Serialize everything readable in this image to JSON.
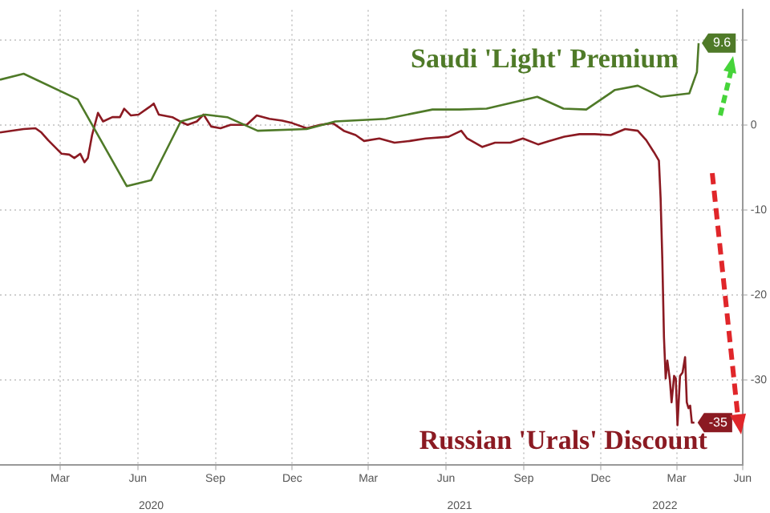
{
  "chart_data": {
    "type": "line",
    "xlim": [
      "2020-01-04",
      "2022-06-01"
    ],
    "xticks": [
      {
        "value": "2020-03-15",
        "label": "Mar"
      },
      {
        "value": "2020-06-15",
        "label": "Jun"
      },
      {
        "value": "2020-09-15",
        "label": "Sep"
      },
      {
        "value": "2020-12-15",
        "label": "Dec"
      },
      {
        "value": "2021-03-15",
        "label": "Mar"
      },
      {
        "value": "2021-06-15",
        "label": "Jun"
      },
      {
        "value": "2021-09-15",
        "label": "Sep"
      },
      {
        "value": "2021-12-15",
        "label": "Dec"
      },
      {
        "value": "2022-03-15",
        "label": "Mar"
      },
      {
        "value": "2022-06-01",
        "label": "Jun"
      }
    ],
    "x2lim": [
      "2020-01-04",
      "2022-06-01"
    ],
    "x2ticks": [
      {
        "value": "2020-07-01",
        "label": "2020"
      },
      {
        "value": "2021-07-01",
        "label": "2021"
      },
      {
        "value": "2022-03-01",
        "label": "2022"
      }
    ],
    "ylim": [
      -40,
      13.5
    ],
    "yticks": [
      {
        "value": 10,
        "label": null
      },
      0,
      -10,
      -20,
      -30
    ],
    "grid": true,
    "legend": "right",
    "series": [
      {
        "name": "Saudi 'Light' Premium",
        "color": "#4f7a28",
        "x": [
          "2020-01-04",
          "2020-02-01",
          "2020-04-05",
          "2020-06-02",
          "2020-07-01",
          "2020-08-05",
          "2020-09-03",
          "2020-09-29",
          "2020-11-04",
          "2021-01-01",
          "2021-02-04",
          "2021-04-05",
          "2021-05-30",
          "2021-07-01",
          "2021-08-02",
          "2021-10-01",
          "2021-11-01",
          "2021-11-28",
          "2022-01-01",
          "2022-01-28",
          "2022-02-24",
          "2022-03-30",
          "2022-04-08",
          "2022-04-10"
        ],
        "values": [
          5.3,
          6.0,
          3.0,
          -7.2,
          -6.5,
          0.4,
          1.2,
          0.9,
          -0.7,
          -0.5,
          0.4,
          0.7,
          1.8,
          1.8,
          1.9,
          3.3,
          1.9,
          1.8,
          4.1,
          4.6,
          3.3,
          3.7,
          6.2,
          9.6
        ],
        "value_labels": [
          null,
          null,
          null,
          null,
          null,
          null,
          null,
          null,
          null,
          null,
          null,
          null,
          null,
          null,
          null,
          null,
          null,
          null,
          null,
          null,
          null,
          null,
          null,
          "9.6"
        ]
      },
      {
        "name": "Russian 'Urals' Discount",
        "color": "#8b1a22",
        "x": [
          "2020-01-04",
          "2020-02-01",
          "2020-02-15",
          "2020-02-22",
          "2020-03-01",
          "2020-03-17",
          "2020-03-26",
          "2020-04-01",
          "2020-04-08",
          "2020-04-13",
          "2020-04-17",
          "2020-04-22",
          "2020-04-29",
          "2020-05-05",
          "2020-05-16",
          "2020-05-25",
          "2020-05-30",
          "2020-06-07",
          "2020-06-16",
          "2020-06-29",
          "2020-07-04",
          "2020-07-10",
          "2020-07-26",
          "2020-08-04",
          "2020-08-13",
          "2020-08-24",
          "2020-09-01",
          "2020-09-10",
          "2020-09-21",
          "2020-10-03",
          "2020-10-22",
          "2020-11-03",
          "2020-11-18",
          "2020-12-03",
          "2020-12-15",
          "2021-01-01",
          "2021-01-17",
          "2021-02-01",
          "2021-02-14",
          "2021-02-28",
          "2021-03-10",
          "2021-03-28",
          "2021-04-15",
          "2021-05-03",
          "2021-05-22",
          "2021-06-18",
          "2021-07-03",
          "2021-07-10",
          "2021-07-28",
          "2021-08-12",
          "2021-08-30",
          "2021-09-14",
          "2021-10-02",
          "2021-10-15",
          "2021-11-02",
          "2021-11-20",
          "2021-12-08",
          "2021-12-27",
          "2022-01-13",
          "2022-01-28",
          "2022-02-07",
          "2022-02-16",
          "2022-02-22",
          "2022-02-24",
          "2022-02-26",
          "2022-02-28",
          "2022-03-02",
          "2022-03-04",
          "2022-03-07",
          "2022-03-09",
          "2022-03-12",
          "2022-03-14",
          "2022-03-16",
          "2022-03-19",
          "2022-03-22",
          "2022-03-25",
          "2022-03-27",
          "2022-03-29",
          "2022-03-31",
          "2022-04-02",
          "2022-04-05"
        ],
        "values": [
          -0.9,
          -0.5,
          -0.4,
          -0.9,
          -1.8,
          -3.4,
          -3.5,
          -3.9,
          -3.4,
          -4.4,
          -3.9,
          -1.2,
          1.4,
          0.4,
          0.9,
          0.9,
          1.9,
          1.1,
          1.2,
          2.1,
          2.5,
          1.2,
          0.9,
          0.4,
          0,
          0.4,
          1.2,
          -0.2,
          -0.4,
          0,
          0,
          1.1,
          0.7,
          0.5,
          0.2,
          -0.4,
          0,
          0.2,
          -0.7,
          -1.2,
          -1.9,
          -1.6,
          -2.1,
          -1.9,
          -1.6,
          -1.4,
          -0.7,
          -1.6,
          -2.6,
          -2.1,
          -2.1,
          -1.6,
          -2.3,
          -1.9,
          -1.4,
          -1.1,
          -1.1,
          -1.2,
          -0.5,
          -0.7,
          -1.8,
          -3.2,
          -4.2,
          -8.6,
          -15.7,
          -25,
          -29.8,
          -27.7,
          -30,
          -32.6,
          -29.5,
          -29.8,
          -35.3,
          -29.5,
          -29.1,
          -27.3,
          -32.6,
          -33.3,
          -33,
          -35,
          -35
        ],
        "value_labels": [
          null,
          null,
          null,
          null,
          null,
          null,
          null,
          null,
          null,
          null,
          null,
          null,
          null,
          null,
          null,
          null,
          null,
          null,
          null,
          null,
          null,
          null,
          null,
          null,
          null,
          null,
          null,
          null,
          null,
          null,
          null,
          null,
          null,
          null,
          null,
          null,
          null,
          null,
          null,
          null,
          null,
          null,
          null,
          null,
          null,
          null,
          null,
          null,
          null,
          null,
          null,
          null,
          null,
          null,
          null,
          null,
          null,
          null,
          null,
          null,
          null,
          null,
          null,
          null,
          null,
          null,
          null,
          null,
          null,
          null,
          null,
          null,
          null,
          null,
          null,
          null,
          null,
          null,
          null,
          null,
          "-35"
        ]
      }
    ]
  }
}
